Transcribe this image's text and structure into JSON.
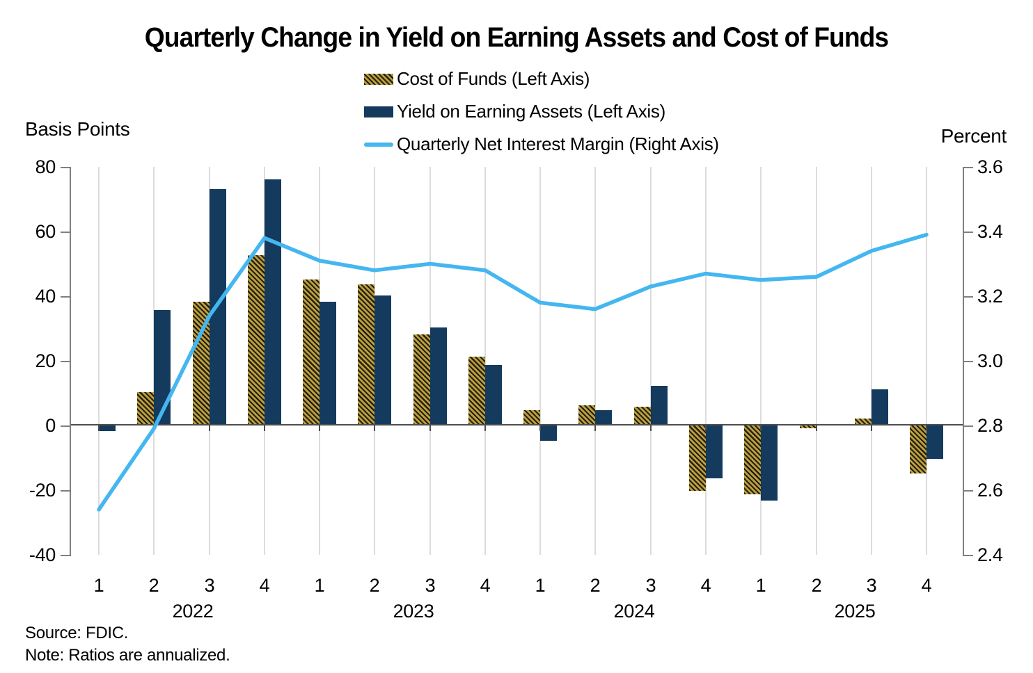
{
  "title": "Quarterly Change in Yield on Earning Assets and Cost of Funds",
  "legend": [
    {
      "label": "Cost of Funds (Left Axis)",
      "swatch": "hatch-swatch"
    },
    {
      "label": "Yield on Earning Assets (Left Axis)",
      "swatch": "solid-swatch"
    },
    {
      "label": "Quarterly Net Interest Margin (Right Axis)",
      "swatch": "line-swatch"
    }
  ],
  "left_axis": {
    "title": "Basis Points",
    "tick_labels": [
      "80",
      "60",
      "40",
      "20",
      "0",
      "-20",
      "-40"
    ]
  },
  "right_axis": {
    "title": "Percent",
    "tick_labels": [
      "3.6",
      "3.4",
      "3.2",
      "3.0",
      "2.8",
      "2.6",
      "2.4"
    ]
  },
  "x_axis": {
    "quarter_labels": [
      "1",
      "2",
      "3",
      "4",
      "1",
      "2",
      "3",
      "4",
      "1",
      "2",
      "3",
      "4",
      "1",
      "2",
      "3",
      "4"
    ],
    "year_labels": [
      "2022",
      "2023",
      "2024",
      "2025"
    ]
  },
  "source": "Source: FDIC.",
  "note": "Note: Ratios are annualized.",
  "colors": {
    "yield_bar": "#143A5E",
    "cof_hatch_gold": "#BCA03F",
    "cof_hatch_dark": "#26200F",
    "nim_line": "#44B6F0",
    "gridline": "#DCDCDC",
    "zero_line": "#4D4D4D",
    "axis_spine": "#7F7F7F"
  },
  "chart_data": {
    "type": "bar",
    "categories": [
      "2022 Q1",
      "2022 Q2",
      "2022 Q3",
      "2022 Q4",
      "2023 Q1",
      "2023 Q2",
      "2023 Q3",
      "2023 Q4",
      "2024 Q1",
      "2024 Q2",
      "2024 Q3",
      "2024 Q4",
      "2025 Q1",
      "2025 Q2",
      "2025 Q3",
      "2025 Q4"
    ],
    "series": [
      {
        "name": "Cost of Funds (Left Axis)",
        "type": "bar",
        "axis": "left",
        "values": [
          0,
          10,
          38,
          52.5,
          45,
          43.5,
          28,
          21,
          4.5,
          6,
          5.5,
          -20.5,
          -21.5,
          -1,
          2,
          -15
        ]
      },
      {
        "name": "Yield on Earning Assets (Left Axis)",
        "type": "bar",
        "axis": "left",
        "values": [
          -2,
          35.5,
          73,
          76,
          38,
          40,
          30,
          18.5,
          -5,
          4.5,
          12,
          -16.5,
          -23.5,
          0,
          11,
          -10.5
        ]
      },
      {
        "name": "Quarterly Net Interest Margin (Right Axis)",
        "type": "line",
        "axis": "right",
        "values": [
          2.54,
          2.79,
          3.14,
          3.38,
          3.31,
          3.28,
          3.3,
          3.28,
          3.18,
          3.16,
          3.23,
          3.27,
          3.25,
          3.26,
          3.34,
          3.39
        ]
      }
    ],
    "left_ylabel": "Basis Points",
    "right_ylabel": "Percent",
    "left_ylim": [
      -40,
      80
    ],
    "right_ylim": [
      2.4,
      3.6
    ],
    "grid": "vertical-only",
    "legend_position": "top-center"
  }
}
